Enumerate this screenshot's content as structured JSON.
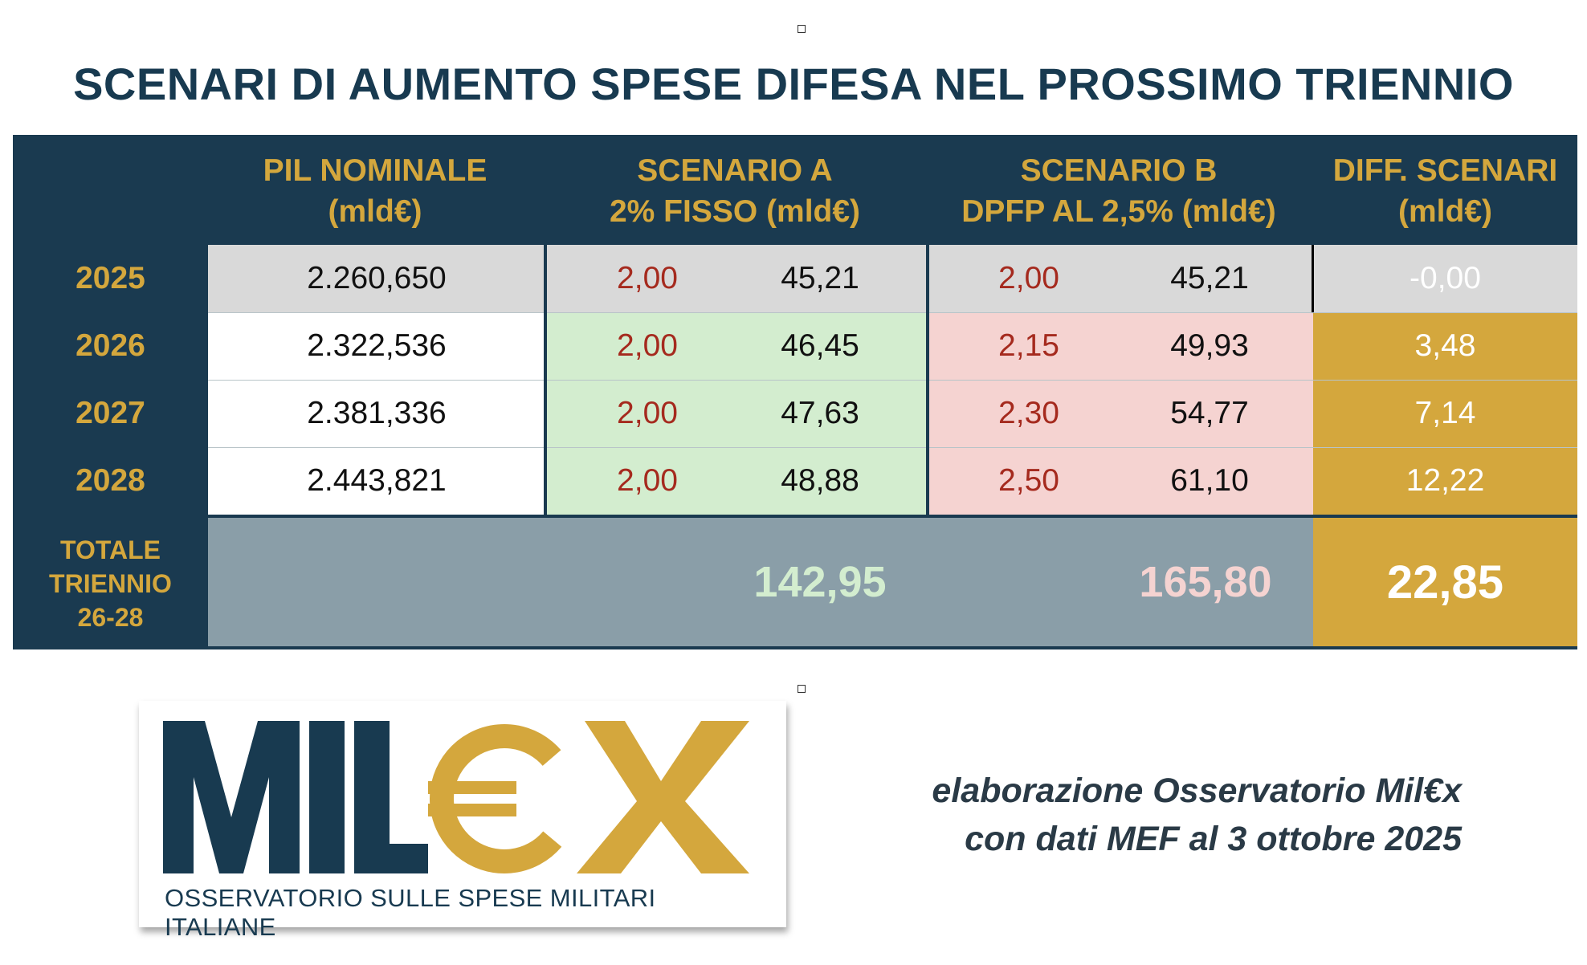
{
  "title": "SCENARI DI AUMENTO SPESE DIFESA NEL PROSSIMO TRIENNIO",
  "chart_data": {
    "type": "table",
    "columns": [
      {
        "line1": "PIL NOMINALE",
        "line2": "(mld€)"
      },
      {
        "line1": "SCENARIO A",
        "line2": "2% FISSO (mld€)"
      },
      {
        "line1": "SCENARIO B",
        "line2": "DPFP AL 2,5% (mld€)"
      },
      {
        "line1": "DIFF. SCENARI",
        "line2": "(mld€)"
      }
    ],
    "rows": [
      {
        "year": "2025",
        "pil": "2.260,650",
        "a_pct": "2,00",
        "a_val": "45,21",
        "b_pct": "2,00",
        "b_val": "45,21",
        "diff": "-0,00"
      },
      {
        "year": "2026",
        "pil": "2.322,536",
        "a_pct": "2,00",
        "a_val": "46,45",
        "b_pct": "2,15",
        "b_val": "49,93",
        "diff": "3,48"
      },
      {
        "year": "2027",
        "pil": "2.381,336",
        "a_pct": "2,00",
        "a_val": "47,63",
        "b_pct": "2,30",
        "b_val": "54,77",
        "diff": "7,14"
      },
      {
        "year": "2028",
        "pil": "2.443,821",
        "a_pct": "2,00",
        "a_val": "48,88",
        "b_pct": "2,50",
        "b_val": "61,10",
        "diff": "12,22"
      }
    ],
    "total": {
      "label1": "TOTALE",
      "label2": "TRIENNIO",
      "label3": "26-28",
      "a": "142,95",
      "b": "165,80",
      "diff": "22,85"
    }
  },
  "logo": {
    "wordmark_left": "MIL",
    "wordmark_right": "€X",
    "subtitle": "OSSERVATORIO SULLE SPESE MILITARI ITALIANE"
  },
  "credit": {
    "line1": "elaborazione Osservatorio Mil€x",
    "line2": "con dati MEF al 3 ottobre 2025"
  },
  "colors": {
    "navy": "#1a3a50",
    "gold": "#d4a73d",
    "green": "#d3edcf",
    "pink": "#f5d3d1",
    "slate": "#8a9ea8",
    "red_text": "#a52a1e"
  }
}
